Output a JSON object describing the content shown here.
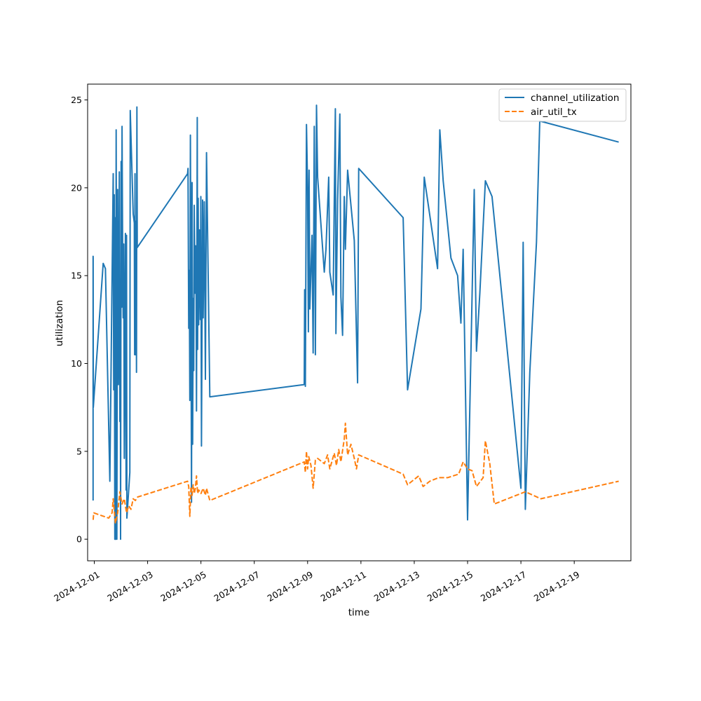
{
  "chart_data": {
    "type": "line",
    "title": "",
    "xlabel": "time",
    "ylabel": "utilization",
    "x_axis_type": "date",
    "xlim": [
      "2024-11-30T18:00",
      "2024-12-21T03:00"
    ],
    "ylim": [
      -1.23,
      25.9
    ],
    "x_ticks": [
      "2024-12-01",
      "2024-12-03",
      "2024-12-05",
      "2024-12-07",
      "2024-12-09",
      "2024-12-11",
      "2024-12-13",
      "2024-12-15",
      "2024-12-17",
      "2024-12-19"
    ],
    "y_ticks": [
      0,
      5,
      10,
      15,
      20,
      25
    ],
    "grid": false,
    "legend_position": "top-right",
    "series": [
      {
        "name": "channel_utilization",
        "color": "#1f77b4",
        "style": "solid",
        "points": [
          [
            "2024-11-30T22:55",
            2.2
          ],
          [
            "2024-11-30T22:56",
            16.1
          ],
          [
            "2024-11-30T23:00",
            16.0
          ],
          [
            "2024-11-30T23:05",
            7.5
          ],
          [
            "2024-12-01T08:00",
            15.7
          ],
          [
            "2024-12-01T10:00",
            15.4
          ],
          [
            "2024-12-01T14:00",
            3.3
          ],
          [
            "2024-12-01T17:00",
            20.8
          ],
          [
            "2024-12-01T17:30",
            8.5
          ],
          [
            "2024-12-01T18:00",
            19.6
          ],
          [
            "2024-12-01T18:30",
            0.0
          ],
          [
            "2024-12-01T19:00",
            18.3
          ],
          [
            "2024-12-01T19:20",
            0.0
          ],
          [
            "2024-12-01T19:40",
            23.3
          ],
          [
            "2024-12-01T20:00",
            14.6
          ],
          [
            "2024-12-01T20:20",
            0.0
          ],
          [
            "2024-12-01T21:00",
            19.9
          ],
          [
            "2024-12-01T21:40",
            8.8
          ],
          [
            "2024-12-01T22:10",
            13.5
          ],
          [
            "2024-12-01T22:30",
            20.9
          ],
          [
            "2024-12-01T23:00",
            6.7
          ],
          [
            "2024-12-01T23:30",
            9.7
          ],
          [
            "2024-12-01T23:40",
            0.0
          ],
          [
            "2024-12-02T00:10",
            21.5
          ],
          [
            "2024-12-02T00:40",
            13.2
          ],
          [
            "2024-12-02T01:00",
            23.5
          ],
          [
            "2024-12-02T01:30",
            16.7
          ],
          [
            "2024-12-02T02:00",
            12.6
          ],
          [
            "2024-12-02T02:30",
            16.8
          ],
          [
            "2024-12-02T03:00",
            4.6
          ],
          [
            "2024-12-02T04:00",
            17.4
          ],
          [
            "2024-12-02T04:40",
            2.8
          ],
          [
            "2024-12-02T05:00",
            17.3
          ],
          [
            "2024-12-02T05:20",
            1.2
          ],
          [
            "2024-12-02T08:00",
            3.8
          ],
          [
            "2024-12-02T08:20",
            24.4
          ],
          [
            "2024-12-02T11:00",
            18.5
          ],
          [
            "2024-12-02T12:00",
            18.0
          ],
          [
            "2024-12-02T12:20",
            10.5
          ],
          [
            "2024-12-02T12:40",
            20.8
          ],
          [
            "2024-12-02T13:00",
            10.5
          ],
          [
            "2024-12-02T13:40",
            18.1
          ],
          [
            "2024-12-02T14:00",
            9.5
          ],
          [
            "2024-12-02T14:20",
            24.6
          ],
          [
            "2024-12-02T14:40",
            16.6
          ],
          [
            "2024-12-04T12:00",
            20.8
          ],
          [
            "2024-12-04T12:20",
            21.1
          ],
          [
            "2024-12-04T13:00",
            12.0
          ],
          [
            "2024-12-04T13:30",
            15.3
          ],
          [
            "2024-12-04T14:00",
            7.9
          ],
          [
            "2024-12-04T14:30",
            23.0
          ],
          [
            "2024-12-04T15:00",
            14.5
          ],
          [
            "2024-12-04T15:30",
            2.1
          ],
          [
            "2024-12-04T16:00",
            20.3
          ],
          [
            "2024-12-04T16:30",
            5.4
          ],
          [
            "2024-12-04T17:00",
            13.7
          ],
          [
            "2024-12-04T17:30",
            9.6
          ],
          [
            "2024-12-04T18:00",
            19.0
          ],
          [
            "2024-12-04T18:40",
            14.0
          ],
          [
            "2024-12-04T19:10",
            16.7
          ],
          [
            "2024-12-04T19:40",
            13.6
          ],
          [
            "2024-12-04T20:00",
            7.3
          ],
          [
            "2024-12-04T20:40",
            24.0
          ],
          [
            "2024-12-04T21:00",
            10.8
          ],
          [
            "2024-12-04T21:30",
            19.4
          ],
          [
            "2024-12-04T22:00",
            12.2
          ],
          [
            "2024-12-04T22:40",
            17.6
          ],
          [
            "2024-12-04T23:30",
            12.5
          ],
          [
            "2024-12-04T23:55",
            19.5
          ],
          [
            "2024-12-05T00:30",
            5.3
          ],
          [
            "2024-12-05T01:30",
            19.3
          ],
          [
            "2024-12-05T02:00",
            12.6
          ],
          [
            "2024-12-05T03:00",
            19.2
          ],
          [
            "2024-12-05T04:00",
            9.1
          ],
          [
            "2024-12-05T05:00",
            22.0
          ],
          [
            "2024-12-05T08:00",
            8.1
          ],
          [
            "2024-12-08T21:00",
            8.8
          ],
          [
            "2024-12-08T21:20",
            14.2
          ],
          [
            "2024-12-08T22:00",
            8.7
          ],
          [
            "2024-12-08T23:00",
            23.6
          ],
          [
            "2024-12-09T00:00",
            20.0
          ],
          [
            "2024-12-09T00:40",
            11.8
          ],
          [
            "2024-12-09T01:20",
            21.0
          ],
          [
            "2024-12-09T02:00",
            13.1
          ],
          [
            "2024-12-09T04:00",
            17.3
          ],
          [
            "2024-12-09T05:00",
            10.6
          ],
          [
            "2024-12-09T06:00",
            23.5
          ],
          [
            "2024-12-09T07:00",
            10.5
          ],
          [
            "2024-12-09T08:00",
            24.7
          ],
          [
            "2024-12-09T09:00",
            20.6
          ],
          [
            "2024-12-09T15:00",
            15.2
          ],
          [
            "2024-12-09T16:30",
            16.5
          ],
          [
            "2024-12-09T19:00",
            20.6
          ],
          [
            "2024-12-09T20:00",
            15.2
          ],
          [
            "2024-12-09T23:00",
            13.9
          ],
          [
            "2024-12-10T01:00",
            24.5
          ],
          [
            "2024-12-10T01:30",
            11.7
          ],
          [
            "2024-12-10T03:00",
            19.3
          ],
          [
            "2024-12-10T05:00",
            24.2
          ],
          [
            "2024-12-10T06:00",
            13.8
          ],
          [
            "2024-12-10T07:30",
            11.6
          ],
          [
            "2024-12-10T09:00",
            19.5
          ],
          [
            "2024-12-10T10:00",
            16.5
          ],
          [
            "2024-12-10T12:00",
            21.0
          ],
          [
            "2024-12-10T18:00",
            17.0
          ],
          [
            "2024-12-10T21:00",
            8.9
          ],
          [
            "2024-12-10T22:00",
            21.1
          ],
          [
            "2024-12-12T14:00",
            18.3
          ],
          [
            "2024-12-12T18:00",
            8.5
          ],
          [
            "2024-12-13T06:00",
            13.1
          ],
          [
            "2024-12-13T09:00",
            20.6
          ],
          [
            "2024-12-13T21:00",
            15.4
          ],
          [
            "2024-12-13T23:00",
            23.3
          ],
          [
            "2024-12-14T02:00",
            20.4
          ],
          [
            "2024-12-14T09:00",
            16.0
          ],
          [
            "2024-12-14T15:00",
            15.0
          ],
          [
            "2024-12-14T18:00",
            12.3
          ],
          [
            "2024-12-14T20:00",
            16.5
          ],
          [
            "2024-12-15T00:00",
            1.1
          ],
          [
            "2024-12-15T06:00",
            19.9
          ],
          [
            "2024-12-15T08:00",
            10.7
          ],
          [
            "2024-12-15T11:00",
            14.0
          ],
          [
            "2024-12-15T16:00",
            20.4
          ],
          [
            "2024-12-15T22:00",
            19.5
          ],
          [
            "2024-12-16T11:00",
            11.2
          ],
          [
            "2024-12-17T00:00",
            2.9
          ],
          [
            "2024-12-17T02:00",
            16.9
          ],
          [
            "2024-12-17T04:00",
            1.7
          ],
          [
            "2024-12-17T08:00",
            9.5
          ],
          [
            "2024-12-17T14:00",
            16.9
          ],
          [
            "2024-12-17T17:00",
            23.8
          ],
          [
            "2024-12-20T16:00",
            22.6
          ]
        ]
      },
      {
        "name": "air_util_tx",
        "color": "#ff7f0e",
        "style": "dashed",
        "points": [
          [
            "2024-11-30T23:00",
            1.1
          ],
          [
            "2024-11-30T23:30",
            1.5
          ],
          [
            "2024-12-01T13:00",
            1.2
          ],
          [
            "2024-12-01T16:00",
            1.5
          ],
          [
            "2024-12-01T17:00",
            2.3
          ],
          [
            "2024-12-01T19:00",
            0.9
          ],
          [
            "2024-12-01T21:00",
            1.5
          ],
          [
            "2024-12-01T23:00",
            2.7
          ],
          [
            "2024-12-02T01:00",
            2.0
          ],
          [
            "2024-12-02T03:00",
            2.3
          ],
          [
            "2024-12-02T05:00",
            1.5
          ],
          [
            "2024-12-02T07:00",
            1.9
          ],
          [
            "2024-12-02T09:00",
            1.7
          ],
          [
            "2024-12-02T11:00",
            2.3
          ],
          [
            "2024-12-02T13:00",
            2.2
          ],
          [
            "2024-12-02T15:00",
            2.4
          ],
          [
            "2024-12-04T12:00",
            3.3
          ],
          [
            "2024-12-04T13:00",
            3.0
          ],
          [
            "2024-12-04T14:00",
            1.3
          ],
          [
            "2024-12-04T15:00",
            3.0
          ],
          [
            "2024-12-04T16:00",
            2.5
          ],
          [
            "2024-12-04T17:00",
            3.1
          ],
          [
            "2024-12-04T18:00",
            2.6
          ],
          [
            "2024-12-04T19:00",
            2.9
          ],
          [
            "2024-12-04T20:00",
            3.6
          ],
          [
            "2024-12-04T21:00",
            2.6
          ],
          [
            "2024-12-04T22:00",
            2.8
          ],
          [
            "2024-12-05T00:00",
            2.6
          ],
          [
            "2024-12-05T02:00",
            2.9
          ],
          [
            "2024-12-05T04:00",
            2.5
          ],
          [
            "2024-12-05T05:00",
            2.9
          ],
          [
            "2024-12-05T08:00",
            2.2
          ],
          [
            "2024-12-08T21:00",
            4.4
          ],
          [
            "2024-12-08T22:00",
            3.8
          ],
          [
            "2024-12-08T23:00",
            5.0
          ],
          [
            "2024-12-09T00:00",
            4.0
          ],
          [
            "2024-12-09T01:00",
            4.7
          ],
          [
            "2024-12-09T03:00",
            4.2
          ],
          [
            "2024-12-09T05:00",
            2.9
          ],
          [
            "2024-12-09T07:00",
            4.5
          ],
          [
            "2024-12-09T09:00",
            4.6
          ],
          [
            "2024-12-09T15:00",
            4.3
          ],
          [
            "2024-12-09T18:00",
            4.8
          ],
          [
            "2024-12-09T20:00",
            4.0
          ],
          [
            "2024-12-10T00:00",
            4.9
          ],
          [
            "2024-12-10T02:00",
            4.2
          ],
          [
            "2024-12-10T04:00",
            5.1
          ],
          [
            "2024-12-10T06:00",
            4.4
          ],
          [
            "2024-12-10T09:00",
            5.7
          ],
          [
            "2024-12-10T10:00",
            6.6
          ],
          [
            "2024-12-10T12:00",
            4.8
          ],
          [
            "2024-12-10T15:00",
            5.4
          ],
          [
            "2024-12-10T18:00",
            4.6
          ],
          [
            "2024-12-10T20:00",
            4.0
          ],
          [
            "2024-12-10T22:00",
            4.8
          ],
          [
            "2024-12-12T14:00",
            3.7
          ],
          [
            "2024-12-12T18:00",
            3.1
          ],
          [
            "2024-12-13T04:00",
            3.6
          ],
          [
            "2024-12-13T08:00",
            3.0
          ],
          [
            "2024-12-13T14:00",
            3.3
          ],
          [
            "2024-12-13T22:00",
            3.5
          ],
          [
            "2024-12-14T06:00",
            3.5
          ],
          [
            "2024-12-14T16:00",
            3.7
          ],
          [
            "2024-12-14T20:00",
            4.4
          ],
          [
            "2024-12-15T00:00",
            4.0
          ],
          [
            "2024-12-15T04:00",
            3.9
          ],
          [
            "2024-12-15T08:00",
            3.0
          ],
          [
            "2024-12-15T14:00",
            3.5
          ],
          [
            "2024-12-15T16:00",
            5.6
          ],
          [
            "2024-12-15T20:00",
            4.3
          ],
          [
            "2024-12-16T00:00",
            2.0
          ],
          [
            "2024-12-17T00:00",
            2.6
          ],
          [
            "2024-12-17T04:00",
            2.7
          ],
          [
            "2024-12-17T18:00",
            2.3
          ],
          [
            "2024-12-20T16:00",
            3.3
          ]
        ]
      }
    ]
  }
}
